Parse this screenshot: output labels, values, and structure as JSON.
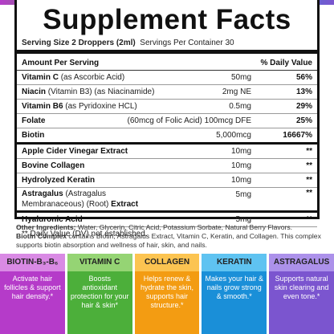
{
  "header": {
    "title": "Supplement Facts",
    "serving_size": "Serving Size 2 Droppers (2ml)",
    "servings": "Servings Per Container 30"
  },
  "table": {
    "col_amount": "Amount Per Serving",
    "col_dv": "% Daily Value",
    "rows": [
      {
        "name": "Vitamin C",
        "detail": "(as Ascorbic Acid)",
        "amount": "50mg",
        "dv": "56%"
      },
      {
        "name": "Niacin",
        "detail": "(Vitamin B3) (as Niacinamide)",
        "amount": "2mg NE",
        "dv": "13%"
      },
      {
        "name": "Vitamin B6",
        "detail": "(as Pyridoxine HCL)",
        "amount": "0.5mg",
        "dv": "29%"
      },
      {
        "name": "Folate",
        "amount": "(60mcg of Folic Acid) 100mcg DFE",
        "dv": "25%"
      },
      {
        "name": "Biotin",
        "amount": "5,000mcg",
        "dv": "16667%"
      },
      {
        "name": "Apple Cider Vinegar Extract",
        "amount": "10mg",
        "dv": "**"
      },
      {
        "name": "Bovine Collagen",
        "amount": "10mg",
        "dv": "**"
      },
      {
        "name": "Hydrolyzed Keratin",
        "amount": "10mg",
        "dv": "**"
      },
      {
        "name": "Astragalus",
        "detail": "(Astragalus Membranaceous) (Root)",
        "suffix": "Extract",
        "amount": "5mg",
        "dv": "**"
      },
      {
        "name": "Hyaluronic Acid",
        "amount": "5mg",
        "dv": "**"
      }
    ],
    "footnote": "** Daily Value (DV) not established."
  },
  "other": {
    "label": "Other Ingredients:",
    "text": "Water, Glycerin, Citric Acid, Potassium Sorbate, Natural Berry Flavors.",
    "complex_label": "Biotin Complex",
    "complex_text": "contains Biotin, Astragalus Extract, Vitamin C, Keratin, and Collagen. This complex supports biotin absorption and wellness of hair, skin, and nails."
  },
  "tiles": [
    {
      "title": "BIOTIN-B₃-B₆",
      "text": "Activate hair follicles & support hair density.*"
    },
    {
      "title": "VITAMIN C",
      "text": "Boosts antioxidant protection for your hair & skin*"
    },
    {
      "title": "COLLAGEN",
      "text": "Helps renew & hydrate the skin, supports hair structure.*"
    },
    {
      "title": "KERATIN",
      "text": "Makes your hair & nails grow strong & smooth.*"
    },
    {
      "title": "ASTRAGALUS",
      "text": "Supports natural skin clearing and even tone.*"
    }
  ]
}
